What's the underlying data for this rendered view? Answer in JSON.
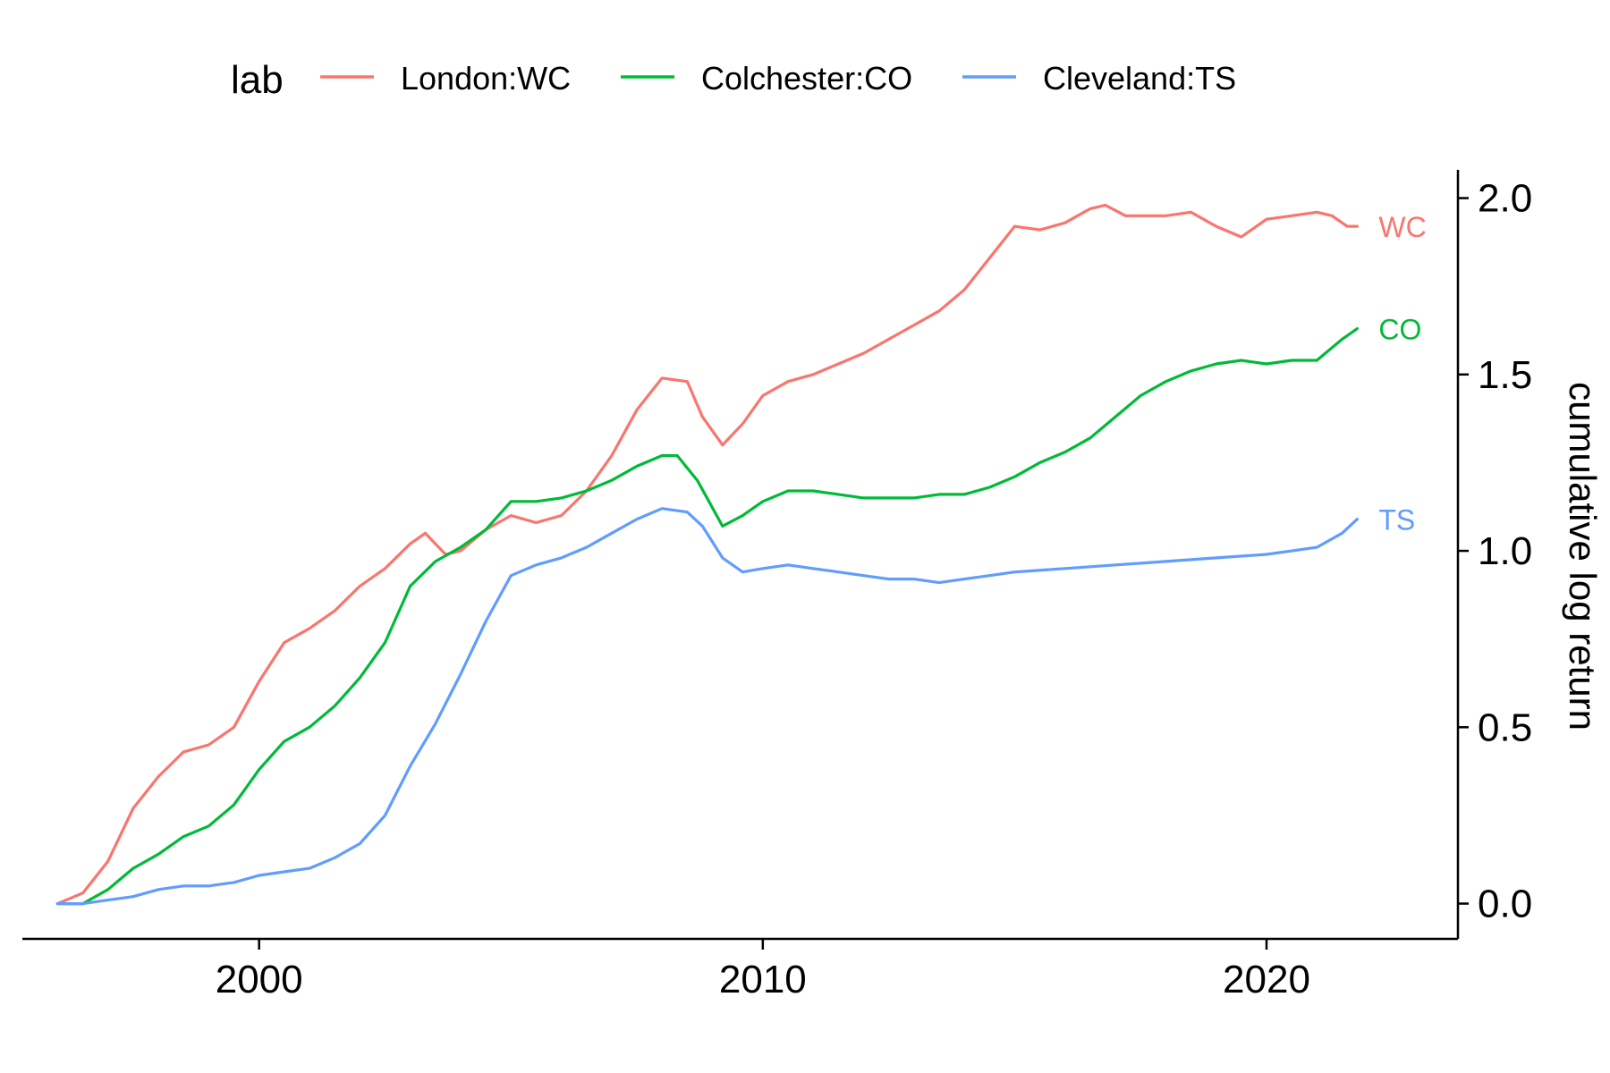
{
  "chart_data": {
    "type": "line",
    "legend": {
      "title": "lab",
      "position": "top"
    },
    "xlabel": "",
    "ylabel": "cumulative log return",
    "xlim": [
      1995.3,
      2023.8
    ],
    "ylim": [
      -0.1,
      2.08
    ],
    "x_ticks": [
      2000,
      2010,
      2020
    ],
    "x_tick_labels": [
      "2000",
      "2010",
      "2020"
    ],
    "y_ticks": [
      0.0,
      0.5,
      1.0,
      1.5,
      2.0
    ],
    "y_tick_labels": [
      "0.0",
      "0.5",
      "1.0",
      "1.5",
      "2.0"
    ],
    "y_axis_side": "right",
    "grid": false,
    "series": [
      {
        "name": "London:WC",
        "end_label": "WC",
        "color": "#F8766D",
        "points": [
          [
            1996.0,
            0.0
          ],
          [
            1996.5,
            0.03
          ],
          [
            1997.0,
            0.12
          ],
          [
            1997.5,
            0.27
          ],
          [
            1998.0,
            0.36
          ],
          [
            1998.5,
            0.43
          ],
          [
            1999.0,
            0.45
          ],
          [
            1999.5,
            0.5
          ],
          [
            2000.0,
            0.63
          ],
          [
            2000.5,
            0.74
          ],
          [
            2001.0,
            0.78
          ],
          [
            2001.5,
            0.83
          ],
          [
            2002.0,
            0.9
          ],
          [
            2002.5,
            0.95
          ],
          [
            2003.0,
            1.02
          ],
          [
            2003.3,
            1.05
          ],
          [
            2003.7,
            0.99
          ],
          [
            2004.0,
            1.0
          ],
          [
            2004.5,
            1.06
          ],
          [
            2005.0,
            1.1
          ],
          [
            2005.5,
            1.08
          ],
          [
            2006.0,
            1.1
          ],
          [
            2006.5,
            1.17
          ],
          [
            2007.0,
            1.27
          ],
          [
            2007.5,
            1.4
          ],
          [
            2008.0,
            1.49
          ],
          [
            2008.5,
            1.48
          ],
          [
            2008.8,
            1.38
          ],
          [
            2009.2,
            1.3
          ],
          [
            2009.6,
            1.36
          ],
          [
            2010.0,
            1.44
          ],
          [
            2010.5,
            1.48
          ],
          [
            2011.0,
            1.5
          ],
          [
            2011.5,
            1.53
          ],
          [
            2012.0,
            1.56
          ],
          [
            2012.5,
            1.6
          ],
          [
            2013.0,
            1.64
          ],
          [
            2013.5,
            1.68
          ],
          [
            2014.0,
            1.74
          ],
          [
            2014.5,
            1.83
          ],
          [
            2015.0,
            1.92
          ],
          [
            2015.5,
            1.91
          ],
          [
            2016.0,
            1.93
          ],
          [
            2016.5,
            1.97
          ],
          [
            2016.8,
            1.98
          ],
          [
            2017.2,
            1.95
          ],
          [
            2018.0,
            1.95
          ],
          [
            2018.5,
            1.96
          ],
          [
            2019.0,
            1.92
          ],
          [
            2019.5,
            1.89
          ],
          [
            2020.0,
            1.94
          ],
          [
            2020.5,
            1.95
          ],
          [
            2021.0,
            1.96
          ],
          [
            2021.3,
            1.95
          ],
          [
            2021.6,
            1.92
          ],
          [
            2021.8,
            1.92
          ]
        ]
      },
      {
        "name": "Colchester:CO",
        "end_label": "CO",
        "color": "#00BA38",
        "points": [
          [
            1996.0,
            0.0
          ],
          [
            1996.5,
            0.0
          ],
          [
            1997.0,
            0.04
          ],
          [
            1997.5,
            0.1
          ],
          [
            1998.0,
            0.14
          ],
          [
            1998.5,
            0.19
          ],
          [
            1999.0,
            0.22
          ],
          [
            1999.5,
            0.28
          ],
          [
            2000.0,
            0.38
          ],
          [
            2000.5,
            0.46
          ],
          [
            2001.0,
            0.5
          ],
          [
            2001.5,
            0.56
          ],
          [
            2002.0,
            0.64
          ],
          [
            2002.5,
            0.74
          ],
          [
            2003.0,
            0.9
          ],
          [
            2003.5,
            0.97
          ],
          [
            2004.0,
            1.01
          ],
          [
            2004.5,
            1.06
          ],
          [
            2005.0,
            1.14
          ],
          [
            2005.5,
            1.14
          ],
          [
            2006.0,
            1.15
          ],
          [
            2006.5,
            1.17
          ],
          [
            2007.0,
            1.2
          ],
          [
            2007.5,
            1.24
          ],
          [
            2008.0,
            1.27
          ],
          [
            2008.3,
            1.27
          ],
          [
            2008.7,
            1.2
          ],
          [
            2009.2,
            1.07
          ],
          [
            2009.6,
            1.1
          ],
          [
            2010.0,
            1.14
          ],
          [
            2010.5,
            1.17
          ],
          [
            2011.0,
            1.17
          ],
          [
            2011.5,
            1.16
          ],
          [
            2012.0,
            1.15
          ],
          [
            2013.0,
            1.15
          ],
          [
            2013.5,
            1.16
          ],
          [
            2014.0,
            1.16
          ],
          [
            2014.5,
            1.18
          ],
          [
            2015.0,
            1.21
          ],
          [
            2015.5,
            1.25
          ],
          [
            2016.0,
            1.28
          ],
          [
            2016.5,
            1.32
          ],
          [
            2017.0,
            1.38
          ],
          [
            2017.5,
            1.44
          ],
          [
            2018.0,
            1.48
          ],
          [
            2018.5,
            1.51
          ],
          [
            2019.0,
            1.53
          ],
          [
            2019.5,
            1.54
          ],
          [
            2020.0,
            1.53
          ],
          [
            2020.5,
            1.54
          ],
          [
            2021.0,
            1.54
          ],
          [
            2021.5,
            1.6
          ],
          [
            2021.8,
            1.63
          ]
        ]
      },
      {
        "name": "Cleveland:TS",
        "end_label": "TS",
        "color": "#619CFF",
        "points": [
          [
            1996.0,
            0.0
          ],
          [
            1996.5,
            0.0
          ],
          [
            1997.0,
            0.01
          ],
          [
            1997.5,
            0.02
          ],
          [
            1998.0,
            0.04
          ],
          [
            1998.5,
            0.05
          ],
          [
            1999.0,
            0.05
          ],
          [
            1999.5,
            0.06
          ],
          [
            2000.0,
            0.08
          ],
          [
            2000.5,
            0.09
          ],
          [
            2001.0,
            0.1
          ],
          [
            2001.5,
            0.13
          ],
          [
            2002.0,
            0.17
          ],
          [
            2002.5,
            0.25
          ],
          [
            2003.0,
            0.39
          ],
          [
            2003.5,
            0.51
          ],
          [
            2004.0,
            0.65
          ],
          [
            2004.5,
            0.8
          ],
          [
            2005.0,
            0.93
          ],
          [
            2005.5,
            0.96
          ],
          [
            2006.0,
            0.98
          ],
          [
            2006.5,
            1.01
          ],
          [
            2007.0,
            1.05
          ],
          [
            2007.5,
            1.09
          ],
          [
            2008.0,
            1.12
          ],
          [
            2008.5,
            1.11
          ],
          [
            2008.8,
            1.07
          ],
          [
            2009.2,
            0.98
          ],
          [
            2009.6,
            0.94
          ],
          [
            2010.0,
            0.95
          ],
          [
            2010.5,
            0.96
          ],
          [
            2011.0,
            0.95
          ],
          [
            2011.5,
            0.94
          ],
          [
            2012.0,
            0.93
          ],
          [
            2012.5,
            0.92
          ],
          [
            2013.0,
            0.92
          ],
          [
            2013.5,
            0.91
          ],
          [
            2014.0,
            0.92
          ],
          [
            2014.5,
            0.93
          ],
          [
            2015.0,
            0.94
          ],
          [
            2016.0,
            0.95
          ],
          [
            2017.0,
            0.96
          ],
          [
            2018.0,
            0.97
          ],
          [
            2019.0,
            0.98
          ],
          [
            2020.0,
            0.99
          ],
          [
            2020.5,
            1.0
          ],
          [
            2021.0,
            1.01
          ],
          [
            2021.5,
            1.05
          ],
          [
            2021.8,
            1.09
          ]
        ]
      }
    ]
  }
}
